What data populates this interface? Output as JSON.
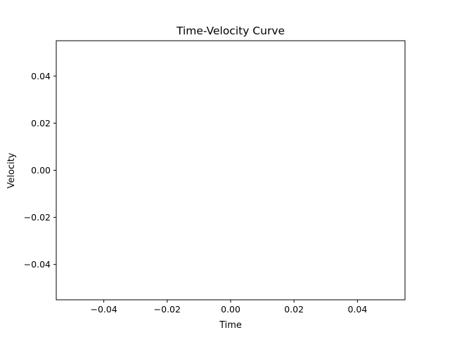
{
  "chart_data": {
    "type": "line",
    "title": "Time-Velocity Curve",
    "xlabel": "Time",
    "ylabel": "Velocity",
    "xlim": [
      -0.055,
      0.055
    ],
    "ylim": [
      -0.055,
      0.055
    ],
    "xticks": [
      -0.04,
      -0.02,
      0.0,
      0.02,
      0.04
    ],
    "xtick_labels": [
      "−0.04",
      "−0.02",
      "0.00",
      "0.02",
      "0.04"
    ],
    "yticks": [
      0.04,
      0.02,
      0.0,
      -0.02,
      -0.04
    ],
    "ytick_labels": [
      "0.04",
      "0.02",
      "0.00",
      "−0.02",
      "−0.04"
    ],
    "series": [
      {
        "x": [],
        "y": []
      }
    ],
    "grid": false,
    "legend": "none"
  }
}
